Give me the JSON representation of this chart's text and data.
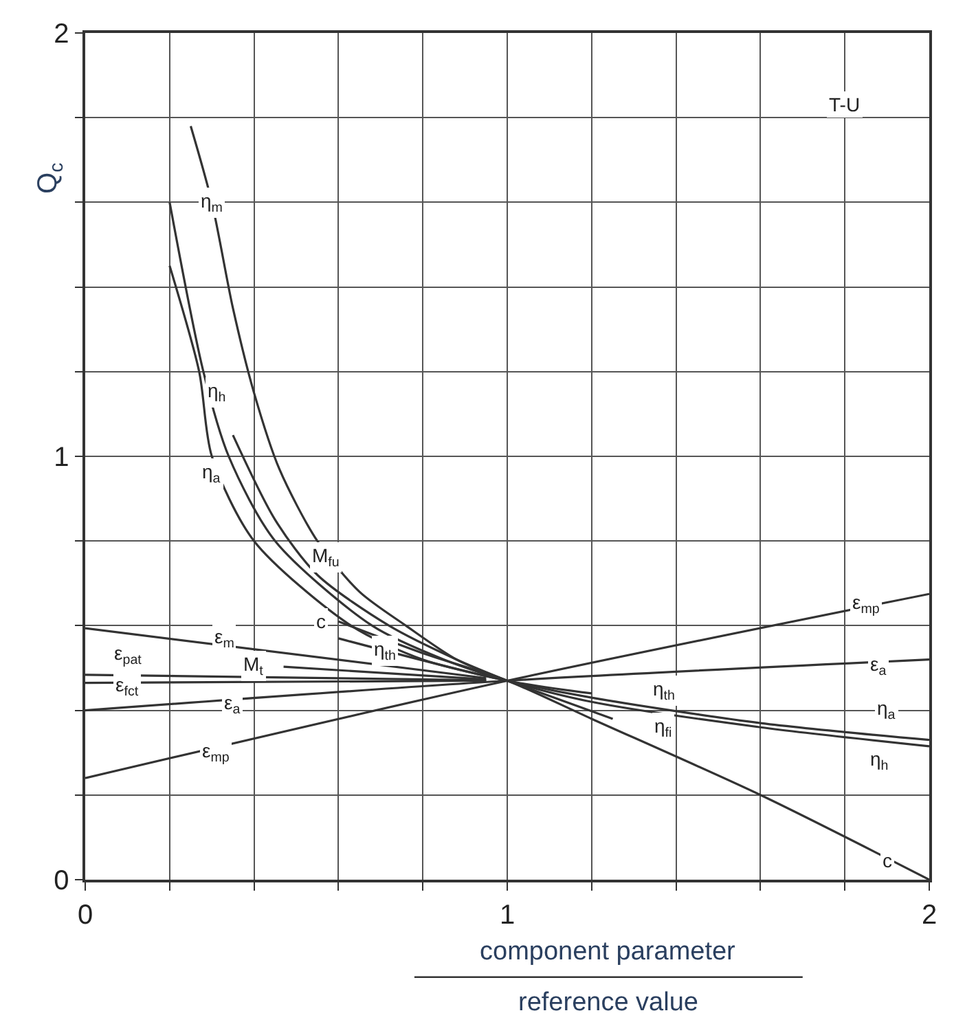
{
  "chart_data": {
    "type": "line",
    "xlabel": "component parameter\nreference value",
    "ylabel": "Q$_{c}$",
    "xlim": [
      0,
      2
    ],
    "ylim": [
      0,
      2
    ],
    "xticks": [
      0,
      {
        "value": 0.2,
        "label": null
      },
      {
        "value": 0.4,
        "label": null
      },
      {
        "value": 0.6,
        "label": null
      },
      {
        "value": 0.8,
        "label": null
      },
      1,
      {
        "value": 1.2,
        "label": null
      },
      {
        "value": 1.4,
        "label": null
      },
      {
        "value": 1.6,
        "label": null
      },
      {
        "value": 1.8,
        "label": null
      },
      2
    ],
    "yticks": [
      0,
      {
        "value": 0.2,
        "label": null
      },
      {
        "value": 0.4,
        "label": null
      },
      {
        "value": 0.6,
        "label": null
      },
      {
        "value": 0.8,
        "label": null
      },
      1,
      {
        "value": 1.2,
        "label": null
      },
      {
        "value": 1.4,
        "label": null
      },
      {
        "value": 1.6,
        "label": null
      },
      {
        "value": 1.8,
        "label": null
      },
      2
    ],
    "grid": true,
    "marker": "none",
    "line_style": "solid",
    "series": [
      {
        "color": "#333333",
        "x": [
          0.25,
          0.3,
          0.35,
          0.4,
          0.46,
          0.55,
          0.65,
          0.76,
          0.88,
          1
        ],
        "values": [
          1.78,
          1.6,
          1.35,
          1.15,
          0.97,
          0.8,
          0.68,
          0.6,
          0.52,
          0.47
        ]
      },
      {
        "color": "#333333",
        "x": [
          0.2,
          0.28,
          0.34,
          0.45,
          0.68,
          0.85,
          1,
          1.2,
          1.6,
          2
        ],
        "values": [
          1.6,
          1.2,
          1.0,
          0.8,
          0.6,
          0.52,
          0.47,
          0.42,
          0.36,
          0.315
        ]
      },
      {
        "color": "#333333",
        "x": [
          0.2,
          0.27,
          0.3,
          0.4,
          0.63,
          0.8,
          1,
          1.2,
          1.6,
          2
        ],
        "values": [
          1.45,
          1.2,
          1.0,
          0.8,
          0.6,
          0.52,
          0.47,
          0.43,
          0.37,
          0.33
        ]
      },
      {
        "color": "#333333",
        "x": [
          0.35,
          0.45,
          0.55,
          0.72,
          0.88,
          1
        ],
        "values": [
          1.05,
          0.85,
          0.72,
          0.6,
          0.52,
          0.47
        ]
      },
      {
        "color": "#333333",
        "x": [
          0.6,
          0.8,
          1,
          1.2,
          1.6,
          2
        ],
        "values": [
          0.61,
          0.535,
          0.47,
          0.38,
          0.2,
          0.0
        ]
      },
      {
        "color": "#333333",
        "x": [
          0.6,
          1,
          1.2
        ],
        "values": [
          0.57,
          0.47,
          0.44
        ]
      },
      {
        "color": "#333333",
        "x": [
          1,
          1.25
        ],
        "values": [
          0.47,
          0.38
        ]
      },
      {
        "color": "#333333",
        "x": [
          0,
          0.95
        ],
        "values": [
          0.594,
          0.476
        ]
      },
      {
        "color": "#333333",
        "x": [
          0.47,
          0.95
        ],
        "values": [
          0.503,
          0.473
        ]
      },
      {
        "color": "#333333",
        "x": [
          0,
          0.95
        ],
        "values": [
          0.484,
          0.471
        ]
      },
      {
        "color": "#333333",
        "x": [
          0,
          0.95
        ],
        "values": [
          0.465,
          0.47
        ]
      },
      {
        "color": "#333333",
        "x": [
          0,
          1,
          2
        ],
        "values": [
          0.4,
          0.47,
          0.52
        ]
      },
      {
        "color": "#333333",
        "x": [
          0,
          1,
          2
        ],
        "values": [
          0.24,
          0.47,
          0.675
        ]
      }
    ],
    "annotations": [
      {
        "text": "T-U",
        "x": 1.8,
        "y": 1.83
      },
      {
        "text": "η$_{m}$",
        "x": 0.3,
        "y": 1.6
      },
      {
        "text": "η$_{h}$",
        "x": 0.31,
        "y": 1.15
      },
      {
        "text": "η$_{a}$",
        "x": 0.3,
        "y": 0.96
      },
      {
        "text": "M$_{fu}$",
        "x": 0.57,
        "y": 0.76
      },
      {
        "text": "c",
        "x": 0.56,
        "y": 0.61
      },
      {
        "text": "η$_{th}$",
        "x": 0.71,
        "y": 0.54
      },
      {
        "text": "ε$_{m}$",
        "x": 0.33,
        "y": 0.57
      },
      {
        "text": "M$_{t}$",
        "x": 0.4,
        "y": 0.505
      },
      {
        "text": "ε$_{pat}$",
        "x": 0.1,
        "y": 0.53
      },
      {
        "text": "ε$_{fct}$",
        "x": 0.1,
        "y": 0.455
      },
      {
        "text": "ε$_{a}$",
        "x": 0.35,
        "y": 0.415
      },
      {
        "text": "ε$_{mp}$",
        "x": 0.31,
        "y": 0.3
      },
      {
        "text": "ε$_{mp}$",
        "x": 1.85,
        "y": 0.65
      },
      {
        "text": "ε$_{a}$",
        "x": 1.88,
        "y": 0.505
      },
      {
        "text": "η$_{th}$",
        "x": 1.37,
        "y": 0.445
      },
      {
        "text": "η$_{a}$",
        "x": 1.9,
        "y": 0.4
      },
      {
        "text": "η$_{fi}$",
        "x": 1.37,
        "y": 0.36
      },
      {
        "text": "η$_{h}$",
        "x": 1.88,
        "y": 0.28
      },
      {
        "text": "c",
        "x": 1.9,
        "y": 0.045
      }
    ]
  }
}
